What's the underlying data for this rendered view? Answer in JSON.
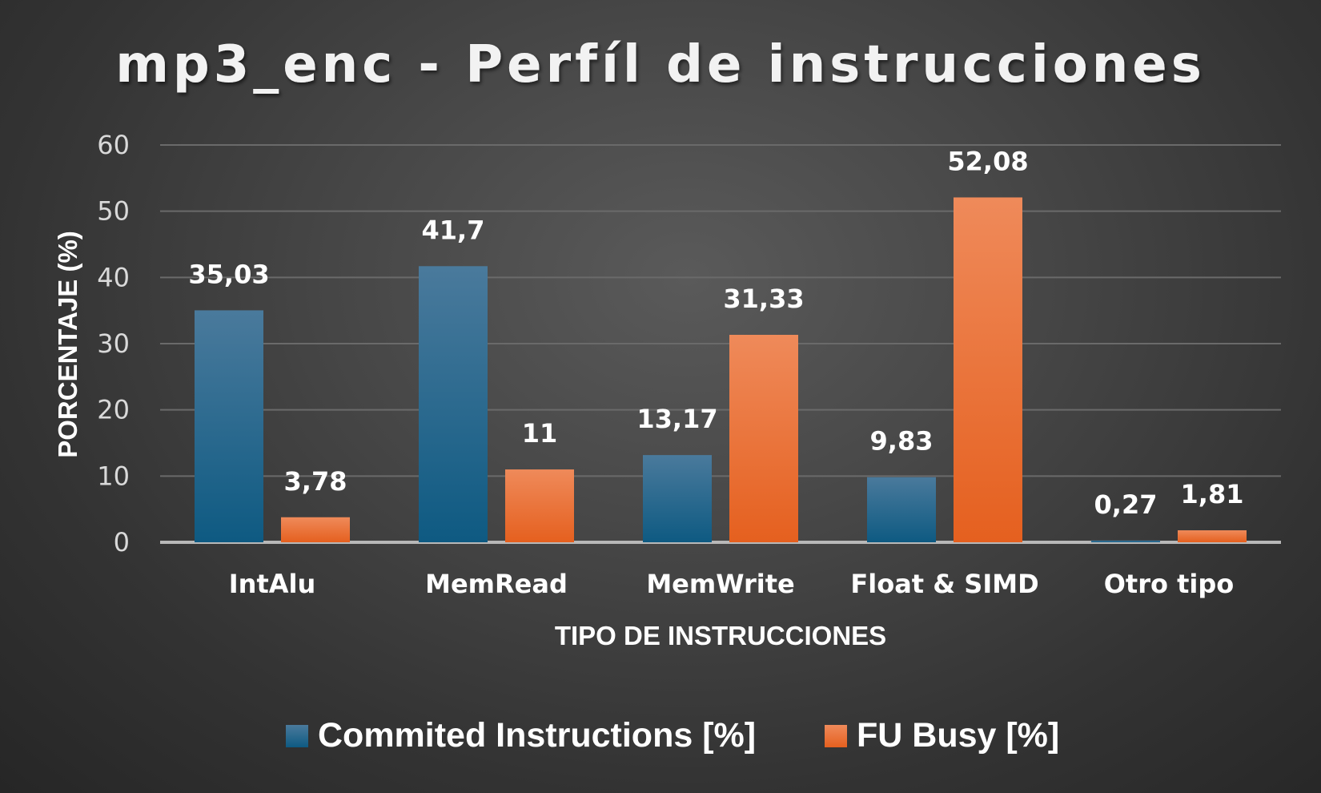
{
  "chart_data": {
    "type": "bar",
    "title": "mp3_enc - Perfíl de instrucciones",
    "xlabel": "TIPO DE INSTRUCCIONES",
    "ylabel": "PORCENTAJE (%)",
    "ylim": [
      0,
      60
    ],
    "yticks": [
      "0",
      "10",
      "20",
      "30",
      "40",
      "50",
      "60"
    ],
    "grid": true,
    "legend_position": "bottom",
    "categories": [
      "IntAlu",
      "MemRead",
      "MemWrite",
      "Float & SIMD",
      "Otro tipo"
    ],
    "series": [
      {
        "name": "Commited Instructions [%]",
        "values": [
          35.03,
          41.7,
          13.17,
          9.83,
          0.27
        ],
        "labels": [
          "35,03",
          "41,7",
          "13,17",
          "9,83",
          "0,27"
        ],
        "color": "#1f5f86"
      },
      {
        "name": "FU Busy [%]",
        "values": [
          3.78,
          11,
          31.33,
          52.08,
          1.81
        ],
        "labels": [
          "3,78",
          "11",
          "31,33",
          "52,08",
          "1,81"
        ],
        "color": "#ee6b2a"
      }
    ]
  }
}
